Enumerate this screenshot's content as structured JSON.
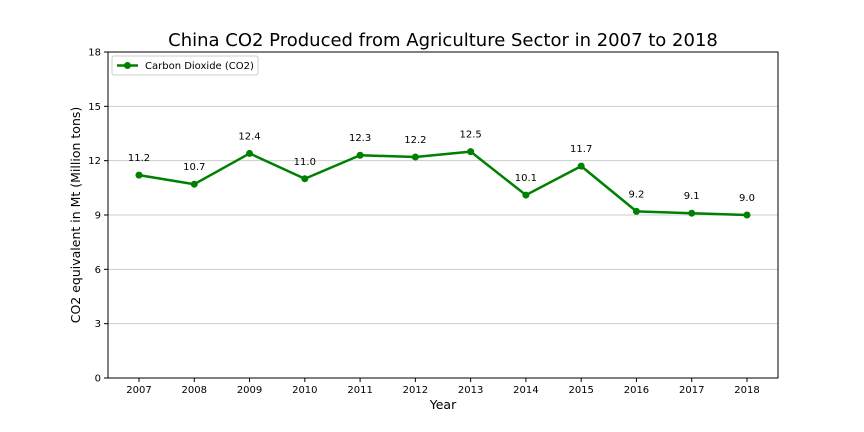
{
  "chart_data": {
    "type": "line",
    "title": "China CO2 Produced from Agriculture Sector in 2007 to 2018",
    "xlabel": "Year",
    "ylabel": "CO2 equivalent in Mt (Million tons)",
    "categories": [
      "2007",
      "2008",
      "2009",
      "2010",
      "2011",
      "2012",
      "2013",
      "2014",
      "2015",
      "2016",
      "2017",
      "2018"
    ],
    "series": [
      {
        "name": "Carbon Dioxide (CO2)",
        "values": [
          11.2,
          10.7,
          12.4,
          11.0,
          12.3,
          12.2,
          12.5,
          10.1,
          11.7,
          9.2,
          9.1,
          9.0
        ],
        "data_labels": [
          "11.2",
          "10.7",
          "12.4",
          "11.0",
          "12.3",
          "12.2",
          "12.5",
          "10.1",
          "11.7",
          "9.2",
          "9.1",
          "9.0"
        ],
        "color": "#008000"
      }
    ],
    "ylim": [
      0,
      18
    ],
    "yticks": [
      "0",
      "3",
      "6",
      "9",
      "12",
      "15",
      "18"
    ],
    "grid": "horizontal",
    "legend_position": "top-left"
  }
}
